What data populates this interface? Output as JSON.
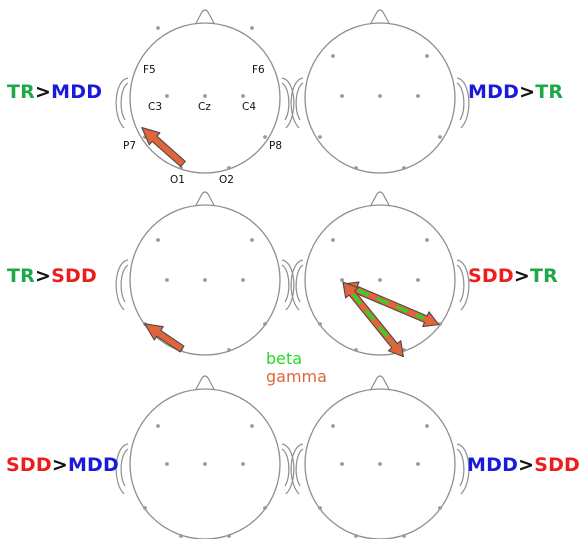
{
  "colors": {
    "head_outline": "#8e8e8e",
    "electrode": "#9a9a9a",
    "label_text": "#111111",
    "arrow_orange": "#e2643a",
    "arrow_outline": "#4a4a4a",
    "beta_green": "#22dd22",
    "TR": "#1ea84a",
    "MDD": "#1a1adc",
    "SDD": "#ee1c1c",
    "operator": "#111111"
  },
  "electrode_labels": {
    "F5": "F5",
    "F6": "F6",
    "C3": "C3",
    "Cz": "Cz",
    "C4": "C4",
    "P7": "P7",
    "P8": "P8",
    "O1": "O1",
    "O2": "O2"
  },
  "comparisons": [
    {
      "id": "tr-gt-mdd",
      "left": "TR",
      "op": ">",
      "right": "MDD",
      "left_color": "#1ea84a",
      "right_color": "#1a1adc"
    },
    {
      "id": "mdd-gt-tr",
      "left": "MDD",
      "op": ">",
      "right": "TR",
      "left_color": "#1a1adc",
      "right_color": "#1ea84a"
    },
    {
      "id": "tr-gt-sdd",
      "left": "TR",
      "op": ">",
      "right": "SDD",
      "left_color": "#1ea84a",
      "right_color": "#ee1c1c"
    },
    {
      "id": "sdd-gt-tr",
      "left": "SDD",
      "op": ">",
      "right": "TR",
      "left_color": "#ee1c1c",
      "right_color": "#1ea84a"
    },
    {
      "id": "sdd-gt-mdd",
      "left": "SDD",
      "op": ">",
      "right": "MDD",
      "left_color": "#ee1c1c",
      "right_color": "#1a1adc"
    },
    {
      "id": "mdd-gt-sdd",
      "left": "MDD",
      "op": ">",
      "right": "SDD",
      "left_color": "#1a1adc",
      "right_color": "#ee1c1c"
    }
  ],
  "legend": {
    "beta": "beta",
    "gamma": "gamma",
    "beta_color": "#22dd22",
    "gamma_color": "#e2643a"
  },
  "connections": [
    {
      "panel": "tr-gt-mdd",
      "from": "O1",
      "to": "P7",
      "bands": [
        "gamma"
      ]
    },
    {
      "panel": "tr-gt-sdd",
      "from": "O1",
      "to": "P7",
      "bands": [
        "gamma"
      ]
    },
    {
      "panel": "sdd-gt-tr",
      "from": "P7",
      "to": "P8",
      "bands": [
        "beta",
        "gamma"
      ]
    },
    {
      "panel": "sdd-gt-tr",
      "from": "P7",
      "to": "O2",
      "bands": [
        "beta",
        "gamma"
      ]
    }
  ]
}
